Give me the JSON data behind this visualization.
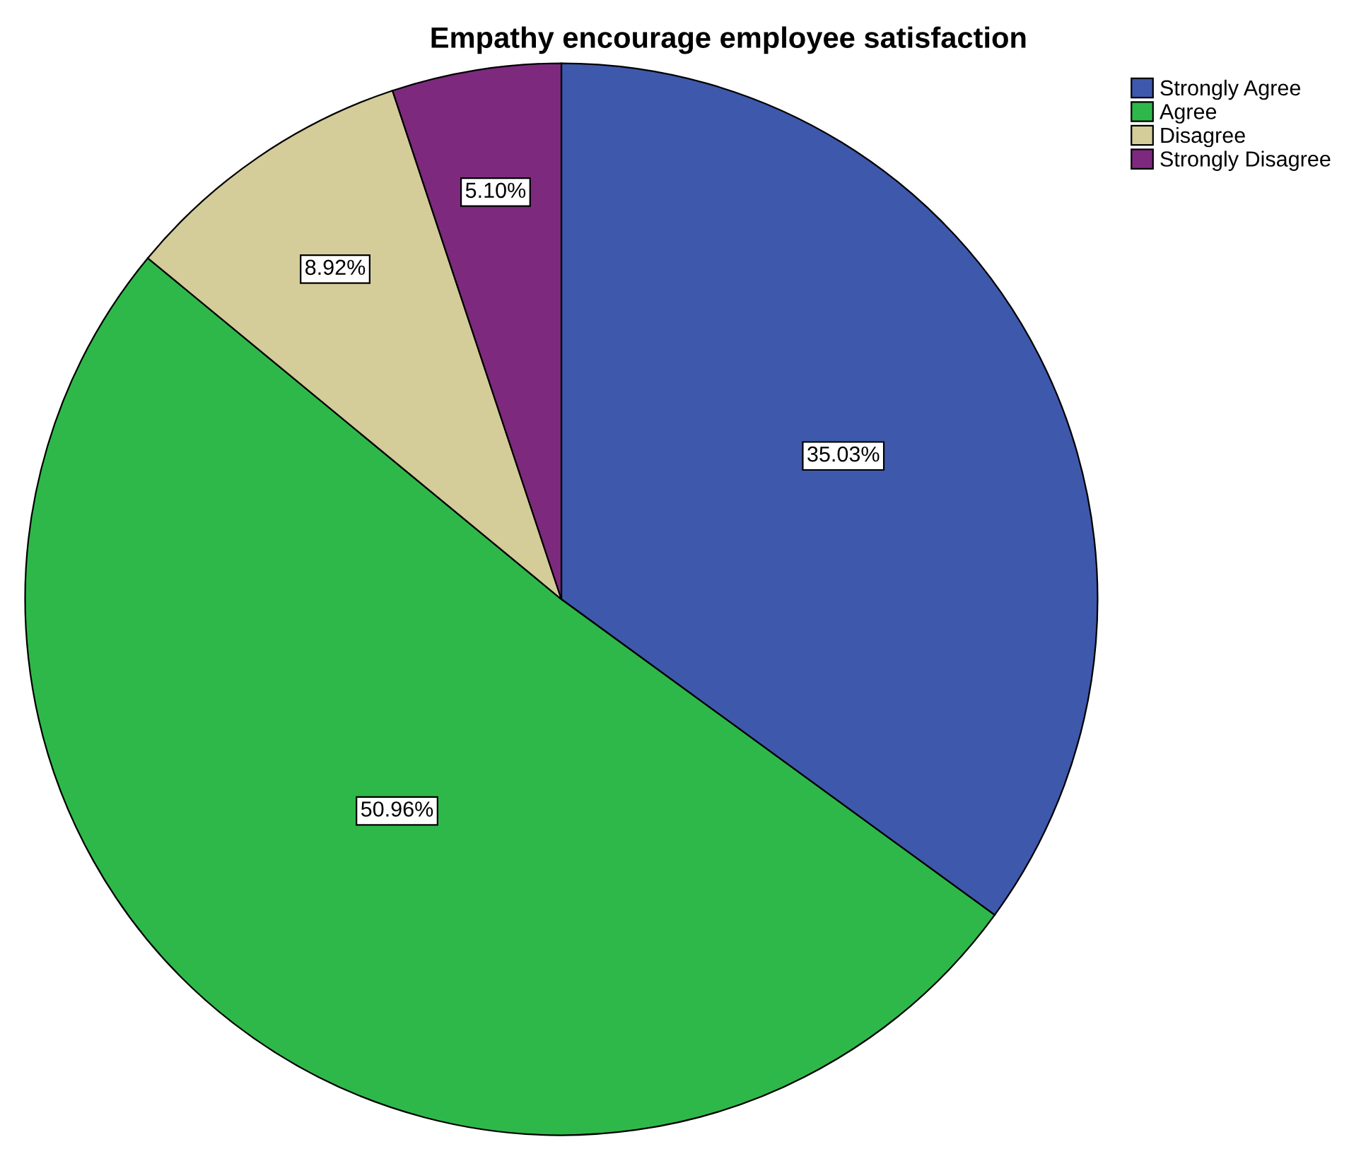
{
  "chart_data": {
    "type": "pie",
    "title": "Empathy encourage employee satisfaction",
    "categories": [
      "Strongly Agree",
      "Agree",
      "Disagree",
      "Strongly Disagree"
    ],
    "values": [
      35.03,
      50.96,
      8.92,
      5.1
    ],
    "value_labels": [
      "35.03%",
      "50.96%",
      "8.92%",
      "5.10%"
    ],
    "colors": [
      "#3e58ac",
      "#2fb84a",
      "#d4cc99",
      "#7d2a7e"
    ],
    "legend": "top right"
  }
}
